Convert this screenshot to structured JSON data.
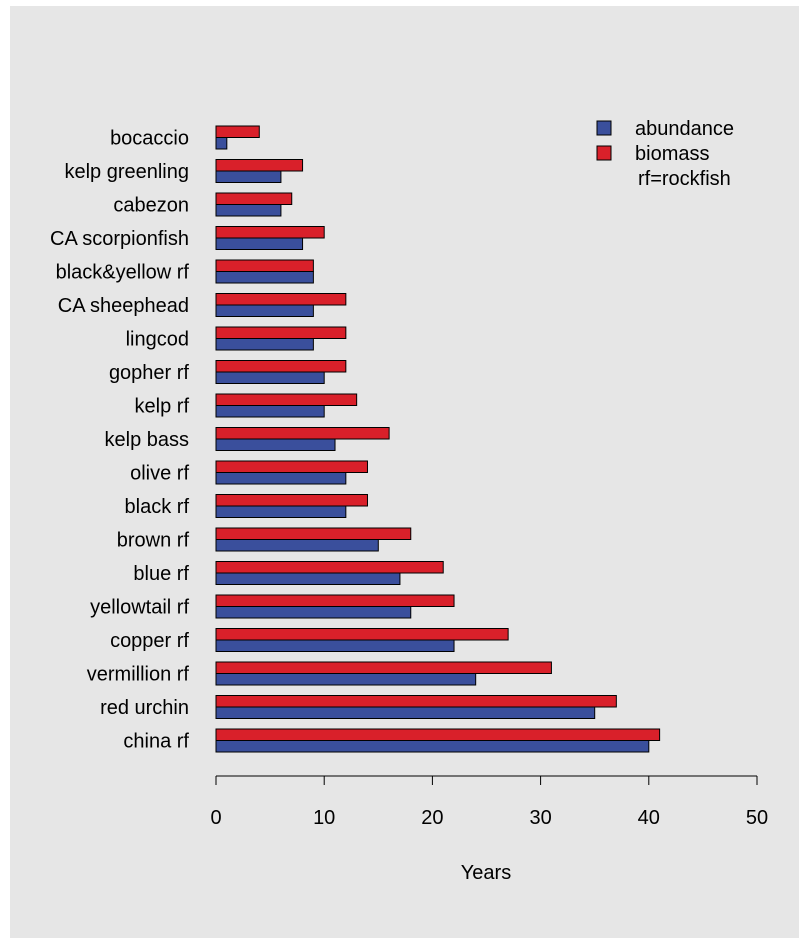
{
  "chart_data": {
    "type": "bar",
    "orientation": "horizontal",
    "categories": [
      "bocaccio",
      "kelp greenling",
      "cabezon",
      "CA scorpionfish",
      "black&yellow rf",
      "CA sheephead",
      "lingcod",
      "gopher rf",
      "kelp rf",
      "kelp bass",
      "olive rf",
      "black rf",
      "brown rf",
      "blue rf",
      "yellowtail rf",
      "copper rf",
      "vermillion rf",
      "red urchin",
      "china rf"
    ],
    "series": [
      {
        "name": "abundance",
        "color": "#3a4f9c",
        "values": [
          1,
          6,
          6,
          8,
          9,
          9,
          9,
          10,
          10,
          11,
          12,
          12,
          15,
          17,
          18,
          22,
          24,
          35,
          40
        ]
      },
      {
        "name": "biomass",
        "color": "#d9202a",
        "values": [
          4,
          8,
          7,
          10,
          9,
          12,
          12,
          12,
          13,
          16,
          14,
          14,
          18,
          21,
          22,
          27,
          31,
          37,
          41
        ]
      }
    ],
    "xlabel": "Years",
    "ylabel": "",
    "title": "",
    "xlim": [
      0,
      50
    ],
    "xticks": [
      "0",
      "10",
      "20",
      "30",
      "40",
      "50"
    ],
    "legend_position": "top-right",
    "legend_note": "rf=rockfish",
    "grid": false
  }
}
